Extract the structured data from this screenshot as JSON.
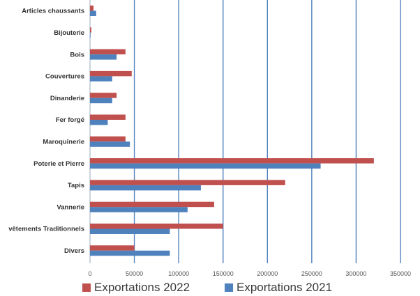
{
  "chart_data": {
    "type": "bar",
    "orientation": "horizontal",
    "categories": [
      "Articles chaussants",
      "Bijouterie",
      "Bois",
      "Couvertures",
      "Dinanderie",
      "Fer forgé",
      "Maroquinerie",
      "Poterie et Pierre",
      "Tapis",
      "Vannerie",
      "vêtements Traditionnels",
      "Divers"
    ],
    "series": [
      {
        "name": "Exportations 2022",
        "color": "#C0504D",
        "values": [
          4000,
          1500,
          40000,
          47000,
          30000,
          40000,
          40000,
          320000,
          220000,
          140000,
          150000,
          50000
        ]
      },
      {
        "name": "Exportations 2021",
        "color": "#4F81BD",
        "values": [
          7000,
          500,
          30000,
          25000,
          25000,
          20000,
          45000,
          260000,
          125000,
          110000,
          90000,
          90000
        ]
      }
    ],
    "xlim": [
      0,
      350000
    ],
    "xticks": [
      0,
      50000,
      100000,
      150000,
      200000,
      250000,
      300000,
      350000
    ],
    "xtick_labels": [
      "0",
      "50000",
      "100000",
      "150000",
      "200000",
      "250000",
      "300000",
      "350000"
    ],
    "grid": "vertical",
    "grid_color": "#4F81BD",
    "legend_position": "bottom",
    "title": "",
    "xlabel": "",
    "ylabel": ""
  }
}
